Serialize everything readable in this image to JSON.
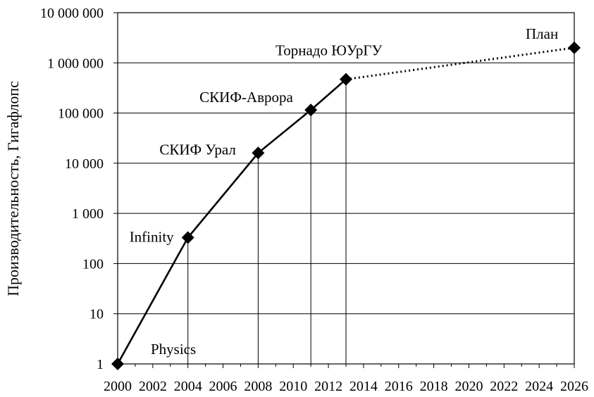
{
  "chart_data": {
    "type": "line",
    "title": "",
    "xlabel": "",
    "ylabel": "Производительность, Гигафлопс",
    "xlim": [
      2000,
      2026
    ],
    "ylim": [
      1,
      10000000
    ],
    "yscale": "log",
    "grid": {
      "x": false,
      "y": true
    },
    "legend": "none",
    "x_ticks": [
      2000,
      2002,
      2004,
      2006,
      2008,
      2010,
      2012,
      2014,
      2016,
      2018,
      2020,
      2022,
      2024,
      2026
    ],
    "x_tick_labels": [
      "2000",
      "2002",
      "2004",
      "2006",
      "2008",
      "2010",
      "2012",
      "2014",
      "2016",
      "2018",
      "2020",
      "2022",
      "2024",
      "2026"
    ],
    "y_ticks": [
      1,
      10,
      100,
      1000,
      10000,
      100000,
      1000000,
      10000000
    ],
    "y_tick_labels": [
      "1",
      "10",
      "100",
      "1 000",
      "10 000",
      "100 000",
      "1 000 000",
      "10 000 000"
    ],
    "series": [
      {
        "style": "solid",
        "marker": "diamond",
        "points": [
          {
            "x": 2000,
            "y": 1,
            "label": "Physics"
          },
          {
            "x": 2004,
            "y": 330,
            "label": "Infinity"
          },
          {
            "x": 2008,
            "y": 16000,
            "label": "СКИФ Урал"
          },
          {
            "x": 2011,
            "y": 115000,
            "label": "СКИФ-Аврора"
          },
          {
            "x": 2013,
            "y": 470000,
            "label": "Торнадо ЮУрГУ"
          }
        ]
      },
      {
        "style": "dotted",
        "marker": "diamond",
        "points": [
          {
            "x": 2013,
            "y": 470000,
            "label": ""
          },
          {
            "x": 2026,
            "y": 2000000,
            "label": "План"
          }
        ]
      }
    ],
    "colors": {
      "line": "#000000",
      "grid": "#000000",
      "background": "#ffffff"
    }
  }
}
